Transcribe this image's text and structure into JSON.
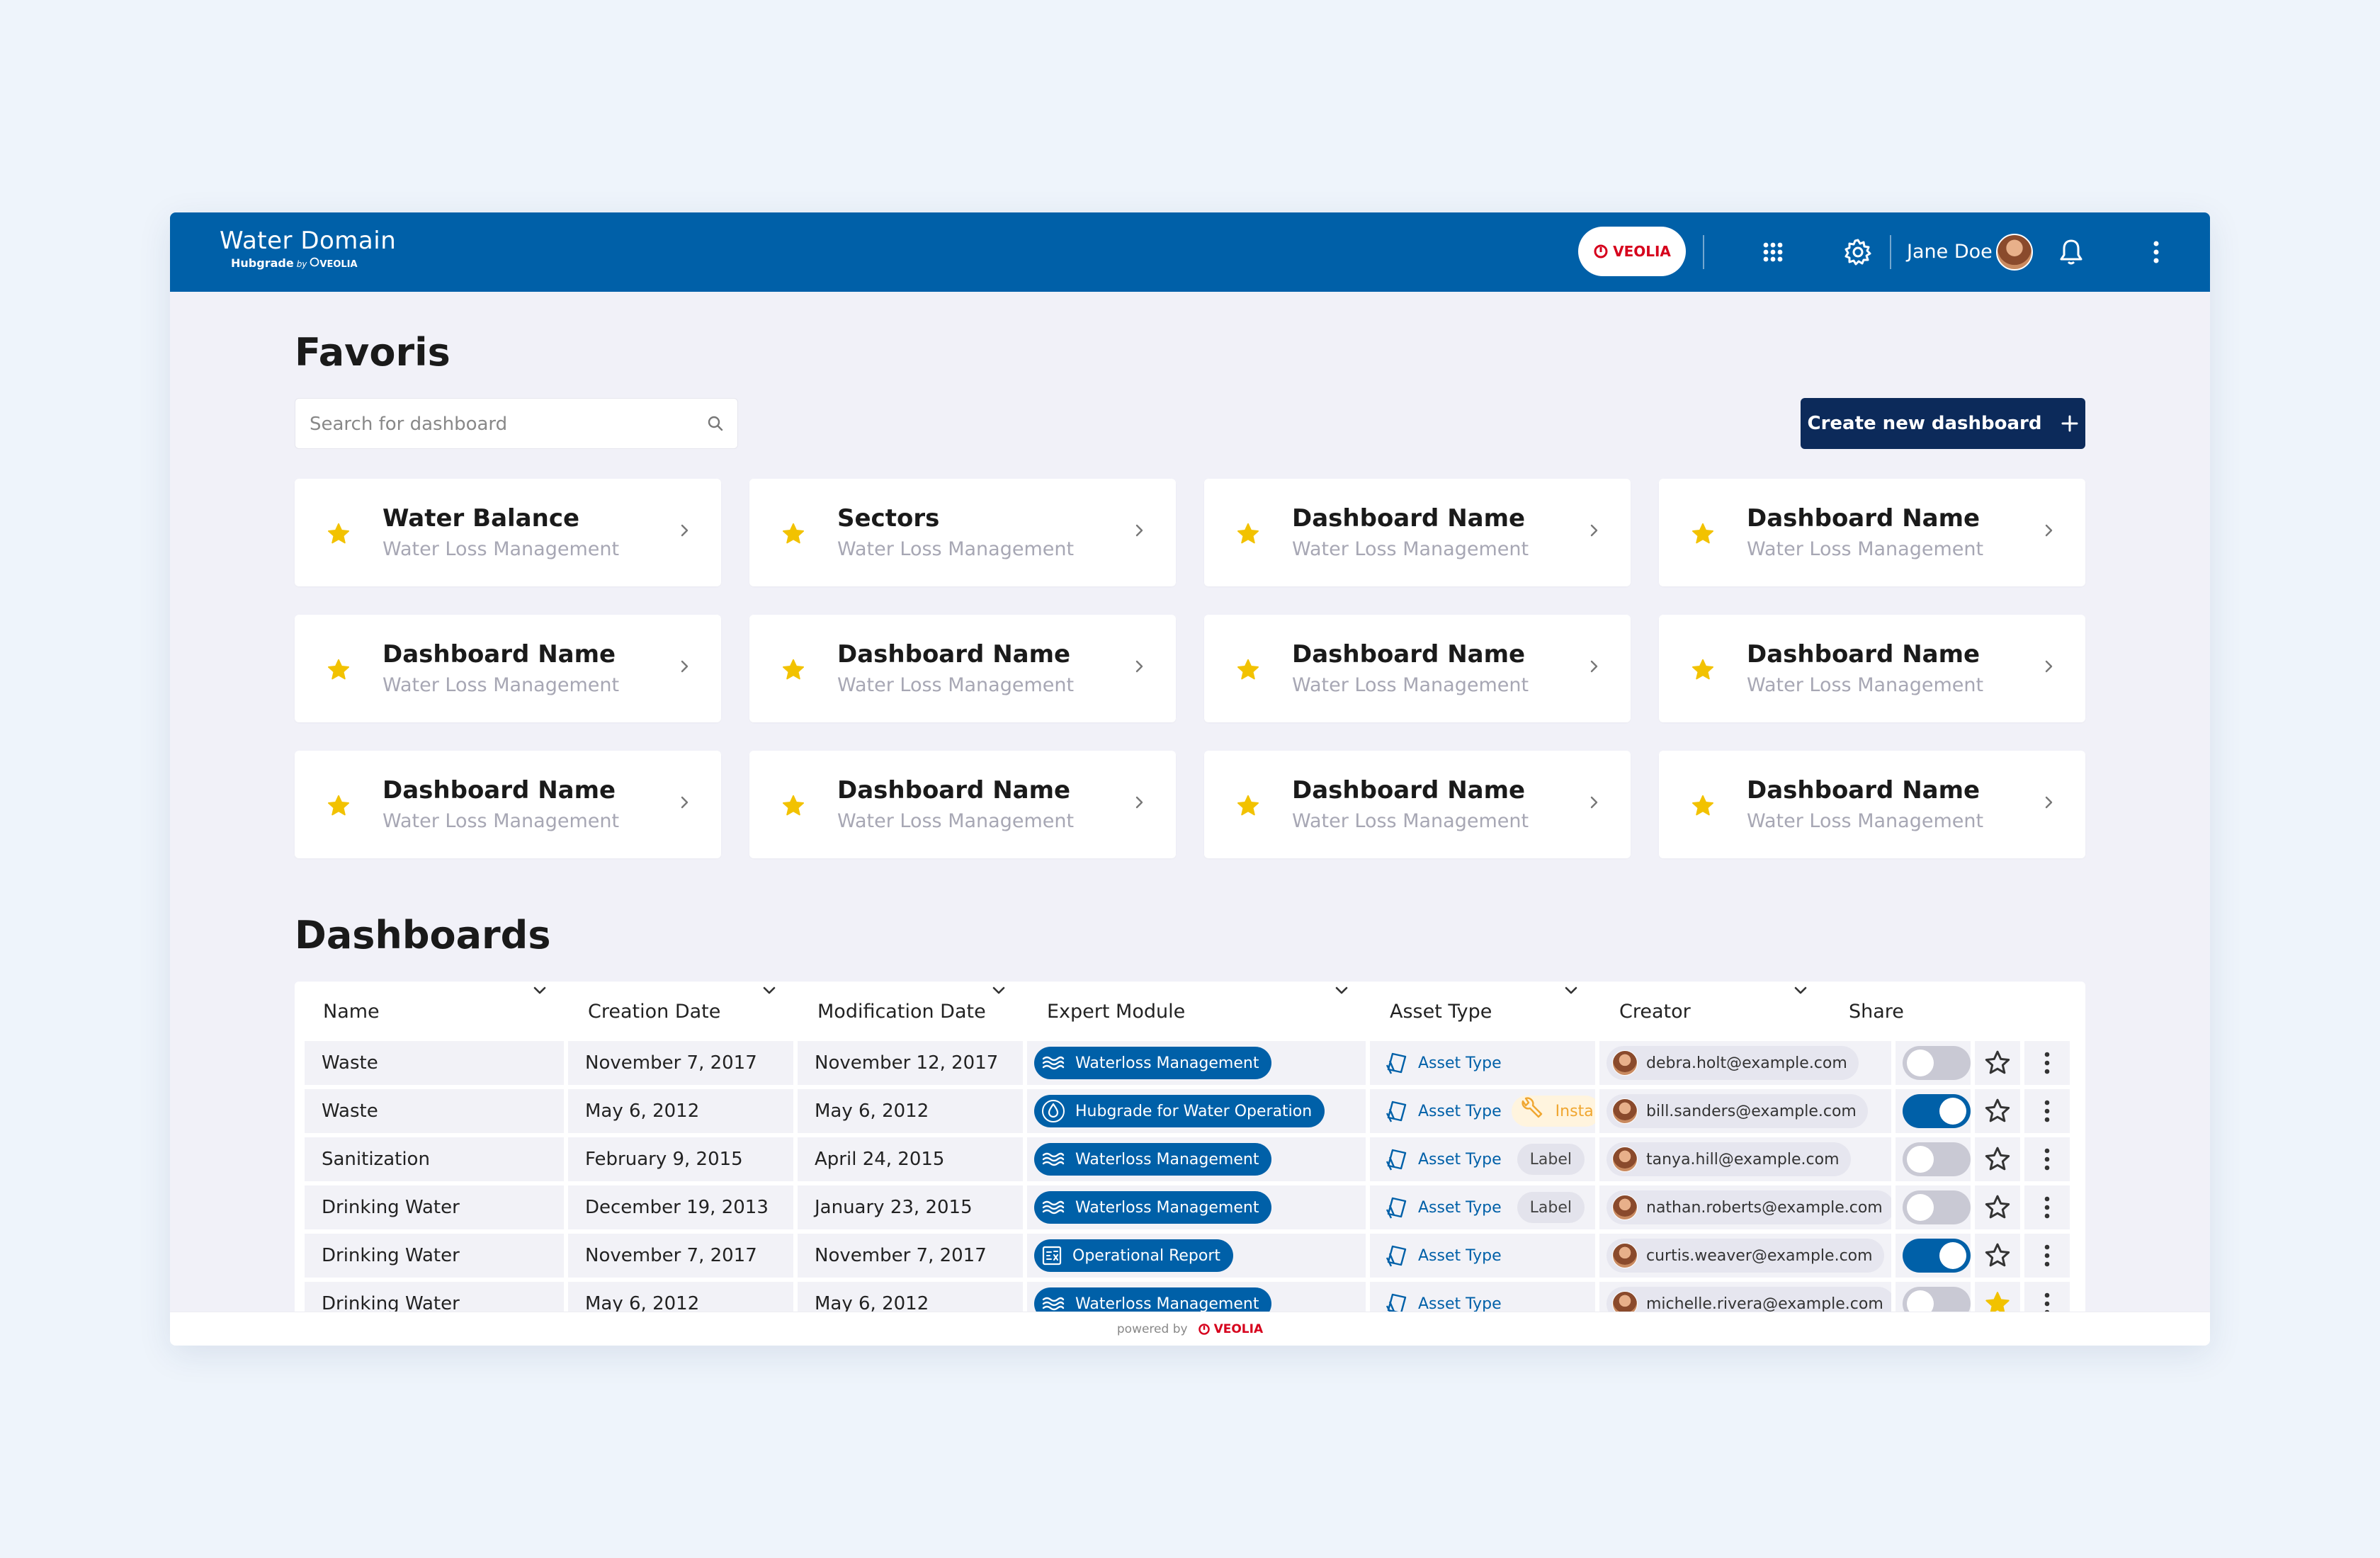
{
  "header": {
    "app_title": "Water Domain",
    "app_subtitle": "Hubgrade",
    "app_by": "by",
    "app_brand": "VEOLIA",
    "veolia_button": "VEOLIA",
    "user_name": "Jane Doe"
  },
  "favoris": {
    "title": "Favoris",
    "search_placeholder": "Search for dashboard",
    "create_label": "Create new dashboard",
    "cards": [
      {
        "title": "Water Balance",
        "subtitle": "Water Loss Management"
      },
      {
        "title": "Sectors",
        "subtitle": "Water Loss Management"
      },
      {
        "title": "Dashboard Name",
        "subtitle": "Water Loss Management"
      },
      {
        "title": "Dashboard Name",
        "subtitle": "Water Loss Management"
      },
      {
        "title": "Dashboard Name",
        "subtitle": "Water Loss Management"
      },
      {
        "title": "Dashboard Name",
        "subtitle": "Water Loss Management"
      },
      {
        "title": "Dashboard Name",
        "subtitle": "Water Loss Management"
      },
      {
        "title": "Dashboard Name",
        "subtitle": "Water Loss Management"
      },
      {
        "title": "Dashboard Name",
        "subtitle": "Water Loss Management"
      },
      {
        "title": "Dashboard Name",
        "subtitle": "Water Loss Management"
      },
      {
        "title": "Dashboard Name",
        "subtitle": "Water Loss Management"
      },
      {
        "title": "Dashboard Name",
        "subtitle": "Water Loss Management"
      }
    ]
  },
  "dashboards": {
    "title": "Dashboards",
    "columns": [
      "Name",
      "Creation Date",
      "Modification Date",
      "Expert Module",
      "Asset Type",
      "Creator",
      "Share"
    ],
    "rows": [
      {
        "name": "Waste",
        "created": "November 7, 2017",
        "modified": "November 12, 2017",
        "module": "Waterloss Management",
        "module_icon": "waves-icon",
        "asset": "Asset Type",
        "extra": "",
        "creator": "debra.holt@example.com",
        "shared": false,
        "favorite": false
      },
      {
        "name": "Waste",
        "created": "May 6, 2012",
        "modified": "May 6, 2012",
        "module": "Hubgrade for Water Operation",
        "module_icon": "drop-icon",
        "asset": "Asset Type",
        "extra": "Insta",
        "extra_kind": "insta",
        "creator": "bill.sanders@example.com",
        "shared": true,
        "favorite": false
      },
      {
        "name": "Sanitization",
        "created": "February 9, 2015",
        "modified": "April 24, 2015",
        "module": "Waterloss Management",
        "module_icon": "waves-icon",
        "asset": "Asset Type",
        "extra": "Label",
        "extra_kind": "label",
        "creator": "tanya.hill@example.com",
        "shared": false,
        "favorite": false
      },
      {
        "name": "Drinking Water",
        "created": "December 19, 2013",
        "modified": "January 23, 2015",
        "module": "Waterloss Management",
        "module_icon": "waves-icon",
        "asset": "Asset Type",
        "extra": "Label",
        "extra_kind": "label",
        "creator": "nathan.roberts@example.com",
        "shared": false,
        "favorite": false
      },
      {
        "name": "Drinking Water",
        "created": "November 7, 2017",
        "modified": "November 7, 2017",
        "module": "Operational Report",
        "module_icon": "report-icon",
        "asset": "Asset Type",
        "extra": "",
        "creator": "curtis.weaver@example.com",
        "shared": true,
        "favorite": false
      },
      {
        "name": "Drinking Water",
        "created": "May 6, 2012",
        "modified": "May 6, 2012",
        "module": "Waterloss Management",
        "module_icon": "waves-icon",
        "asset": "Asset Type",
        "extra": "",
        "creator": "michelle.rivera@example.com",
        "shared": false,
        "favorite": true
      }
    ]
  },
  "footer": {
    "powered_by": "powered by",
    "brand": "VEOLIA"
  },
  "colors": {
    "primary": "#0060a8",
    "navy": "#0c2a5a",
    "star": "#f2c200",
    "veolia_red": "#d6001c"
  }
}
